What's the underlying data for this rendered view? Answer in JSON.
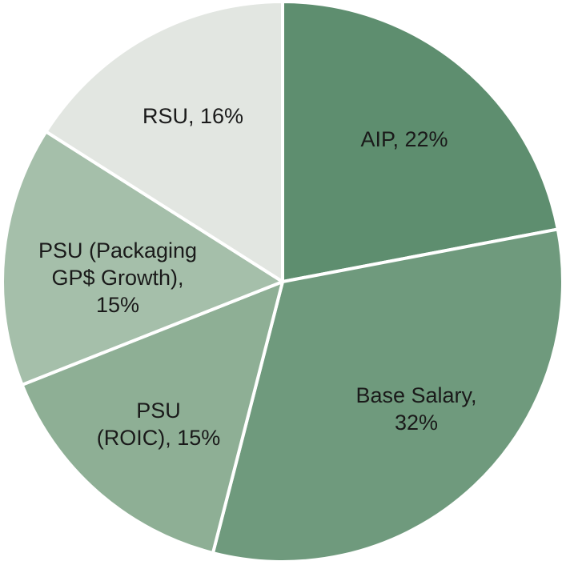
{
  "chart_data": {
    "type": "pie",
    "start_angle_deg": 0,
    "direction": "clockwise",
    "slices": [
      {
        "label_lines": [
          "AIP, 22%"
        ],
        "value": 22,
        "color": "#5e8e6f"
      },
      {
        "label_lines": [
          "Base Salary,",
          "32%"
        ],
        "value": 32,
        "color": "#6f9a7d"
      },
      {
        "label_lines": [
          "PSU",
          "(ROIC), 15%"
        ],
        "value": 15,
        "color": "#8eaf95"
      },
      {
        "label_lines": [
          "PSU (Packaging",
          "GP$ Growth),",
          "15%"
        ],
        "value": 15,
        "color": "#a5bfaa"
      },
      {
        "label_lines": [
          "RSU, 16%"
        ],
        "value": 16,
        "color": "#e2e6e1"
      }
    ]
  }
}
